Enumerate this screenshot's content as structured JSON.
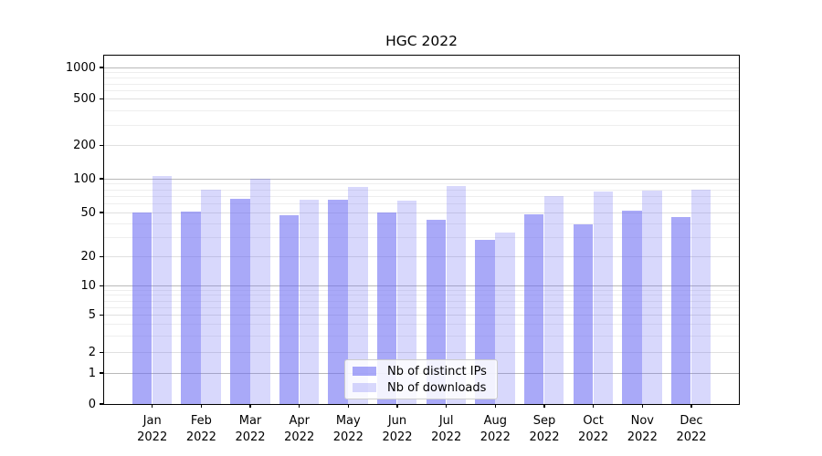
{
  "title": "HGC 2022",
  "chart_data": {
    "type": "bar",
    "title": "HGC 2022",
    "categories": [
      "Jan 2022",
      "Feb 2022",
      "Mar 2022",
      "Apr 2022",
      "May 2022",
      "Jun 2022",
      "Jul 2022",
      "Aug 2022",
      "Sep 2022",
      "Oct 2022",
      "Nov 2022",
      "Dec 2022"
    ],
    "series": [
      {
        "name": "Nb of distinct IPs",
        "color": "#6868f2",
        "alpha": 0.57,
        "values": [
          50,
          51,
          66,
          47,
          65,
          50,
          43,
          28,
          48,
          39,
          52,
          45
        ]
      },
      {
        "name": "Nb of downloads",
        "color": "#6868f2",
        "alpha": 0.26,
        "values": [
          106,
          80,
          100,
          65,
          84,
          64,
          86,
          33,
          70,
          76,
          78,
          80
        ]
      }
    ],
    "yscale": "symlog",
    "yticks": [
      0,
      1,
      2,
      5,
      10,
      20,
      50,
      100,
      200,
      500,
      1000
    ],
    "ytick_labels": [
      "0",
      "1",
      "2",
      "5",
      "10",
      "20",
      "50",
      "100",
      "200",
      "500",
      "1000"
    ],
    "ylim": [
      0,
      1300
    ],
    "xlabel": "",
    "ylabel": "",
    "grid": "both",
    "legend_position": "lower center",
    "background": "#ffffff"
  }
}
